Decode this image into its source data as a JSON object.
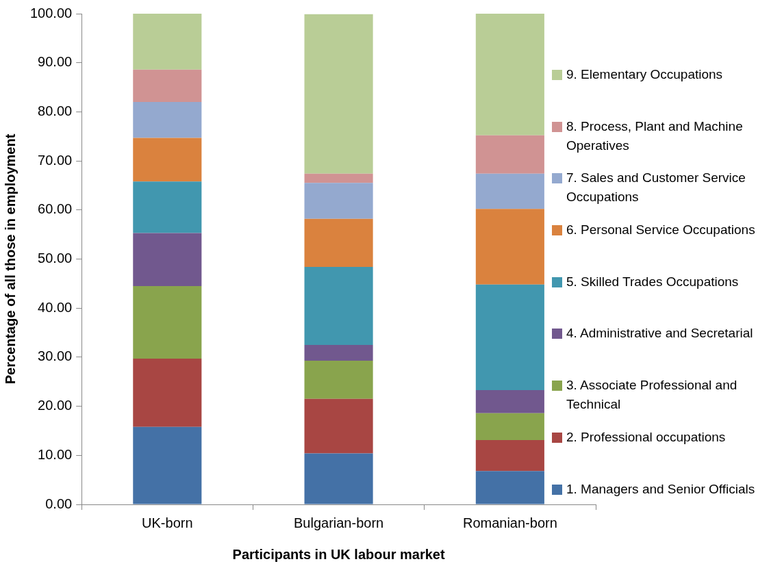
{
  "chart_data": {
    "type": "bar",
    "stacked": true,
    "xlabel": "Participants in UK labour market",
    "ylabel": "Percentage of all those in employment",
    "categories": [
      "UK-born",
      "Bulgarian-born",
      "Romanian-born"
    ],
    "ylim": [
      0,
      100
    ],
    "yticks": [
      {
        "value": 0,
        "label": "0.00"
      },
      {
        "value": 10,
        "label": "10.00"
      },
      {
        "value": 20,
        "label": "20.00"
      },
      {
        "value": 30,
        "label": "30.00"
      },
      {
        "value": 40,
        "label": "40.00"
      },
      {
        "value": 50,
        "label": "50.00"
      },
      {
        "value": 60,
        "label": "60.00"
      },
      {
        "value": 70,
        "label": "70.00"
      },
      {
        "value": 80,
        "label": "80.00"
      },
      {
        "value": 90,
        "label": "90.00"
      },
      {
        "value": 100,
        "label": "100.00"
      }
    ],
    "grid": false,
    "legend": "right",
    "series": [
      {
        "name": "1. Managers and Senior Officials",
        "color": "#4471a6",
        "values": [
          15.8,
          10.4,
          6.8
        ]
      },
      {
        "name": "2. Professional occupations",
        "color": "#a84643",
        "values": [
          13.9,
          11.1,
          6.3
        ]
      },
      {
        "name": "3. Associate Professional and Technical",
        "color": "#89a44d",
        "values": [
          14.8,
          7.8,
          5.5
        ]
      },
      {
        "name": "4. Administrative and Secretarial",
        "color": "#71588e",
        "values": [
          10.8,
          3.2,
          4.7
        ]
      },
      {
        "name": "5. Skilled Trades Occupations",
        "color": "#4197af",
        "values": [
          10.5,
          15.9,
          21.5
        ]
      },
      {
        "name": "6. Personal Service Occupations",
        "color": "#da823e",
        "values": [
          8.9,
          9.8,
          15.4
        ]
      },
      {
        "name": "7. Sales and Customer Service Occupations",
        "color": "#94a9cf",
        "values": [
          7.3,
          7.3,
          7.2
        ]
      },
      {
        "name": "8. Process, Plant and Machine Operatives",
        "color": "#d09393",
        "values": [
          6.6,
          1.9,
          7.8
        ]
      },
      {
        "name": "9. Elementary Occupations",
        "color": "#b9cd96",
        "values": [
          11.4,
          32.5,
          24.8
        ]
      }
    ]
  }
}
